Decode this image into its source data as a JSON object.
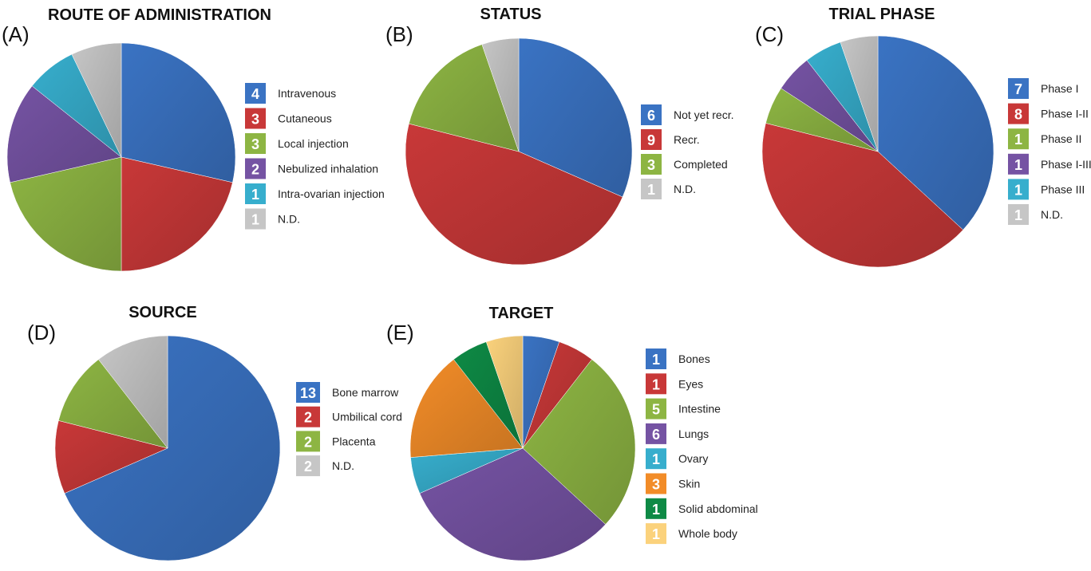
{
  "chart_data": [
    {
      "type": "pie",
      "panel_label": "(A)",
      "title": "ROUTE OF ADMINISTRATION",
      "slices": [
        {
          "label": "Intravenous",
          "value": 4,
          "color": "#3A73C3"
        },
        {
          "label": "Cutaneous",
          "value": 3,
          "color": "#C83838"
        },
        {
          "label": "Local injection",
          "value": 3,
          "color": "#8DB543"
        },
        {
          "label": "Nebulized inhalation",
          "value": 2,
          "color": "#7553A3"
        },
        {
          "label": "Intra-ovarian injection",
          "value": 1,
          "color": "#37AECD"
        },
        {
          "label": "N.D.",
          "value": 1,
          "color": "#C6C6C6"
        }
      ]
    },
    {
      "type": "pie",
      "panel_label": "(B)",
      "title": "STATUS",
      "slices": [
        {
          "label": "Not yet recr.",
          "value": 6,
          "color": "#3A73C3"
        },
        {
          "label": "Recr.",
          "value": 9,
          "color": "#C83838"
        },
        {
          "label": "Completed",
          "value": 3,
          "color": "#8DB543"
        },
        {
          "label": "N.D.",
          "value": 1,
          "color": "#C6C6C6"
        }
      ]
    },
    {
      "type": "pie",
      "panel_label": "(C)",
      "title": "TRIAL PHASE",
      "slices": [
        {
          "label": "Phase I",
          "value": 7,
          "color": "#3A73C3"
        },
        {
          "label": "Phase I-II",
          "value": 8,
          "color": "#C83838"
        },
        {
          "label": "Phase II",
          "value": 1,
          "color": "#8DB543"
        },
        {
          "label": "Phase I-III",
          "value": 1,
          "color": "#7553A3"
        },
        {
          "label": "Phase III",
          "value": 1,
          "color": "#37AECD"
        },
        {
          "label": "N.D.",
          "value": 1,
          "color": "#C6C6C6"
        }
      ]
    },
    {
      "type": "pie",
      "panel_label": "(D)",
      "title": "SOURCE",
      "slices": [
        {
          "label": "Bone marrow",
          "value": 13,
          "color": "#3A73C3"
        },
        {
          "label": "Umbilical cord",
          "value": 2,
          "color": "#C83838"
        },
        {
          "label": "Placenta",
          "value": 2,
          "color": "#8DB543"
        },
        {
          "label": "N.D.",
          "value": 2,
          "color": "#C6C6C6"
        }
      ]
    },
    {
      "type": "pie",
      "panel_label": "(E)",
      "title": "TARGET",
      "slices": [
        {
          "label": "Bones",
          "value": 1,
          "color": "#3A73C3"
        },
        {
          "label": "Eyes",
          "value": 1,
          "color": "#C83838"
        },
        {
          "label": "Intestine",
          "value": 5,
          "color": "#8DB543"
        },
        {
          "label": "Lungs",
          "value": 6,
          "color": "#7553A3"
        },
        {
          "label": "Ovary",
          "value": 1,
          "color": "#37AECD"
        },
        {
          "label": "Skin",
          "value": 3,
          "color": "#F28C28"
        },
        {
          "label": "Solid abdominal",
          "value": 1,
          "color": "#0E8A45"
        },
        {
          "label": "Whole body",
          "value": 1,
          "color": "#FBD27C"
        }
      ]
    }
  ]
}
